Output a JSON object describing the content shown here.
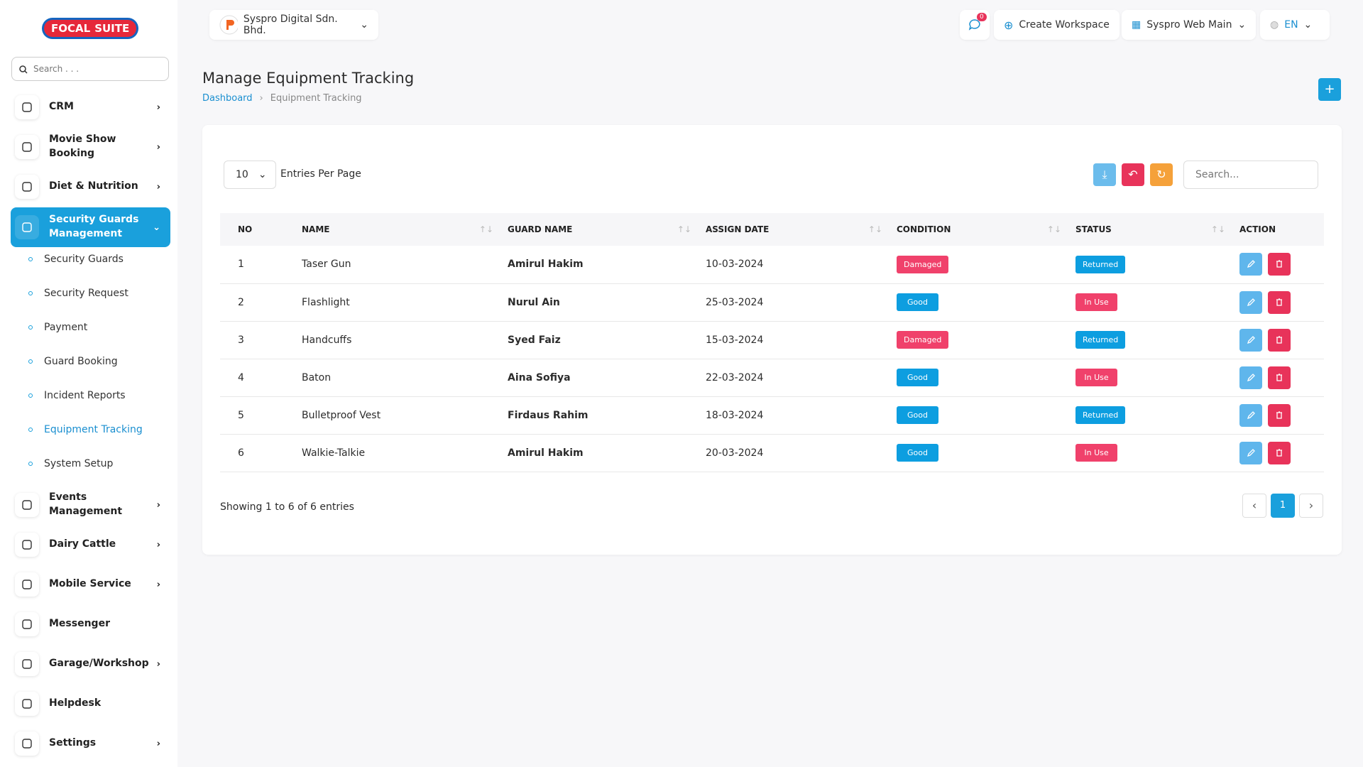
{
  "logo": {
    "part1": "FOCAL",
    "part2": "SUITE"
  },
  "sidebar": {
    "search_placeholder": "Search . . .",
    "menu": [
      {
        "label": "CRM",
        "has_submenu": true
      },
      {
        "label": "Movie Show Booking",
        "has_submenu": true
      },
      {
        "label": "Diet & Nutrition",
        "has_submenu": true
      },
      {
        "label": "Security Guards Management",
        "has_submenu": true,
        "expanded": true,
        "children": [
          {
            "label": "Security Guards"
          },
          {
            "label": "Security Request"
          },
          {
            "label": "Payment"
          },
          {
            "label": "Guard Booking"
          },
          {
            "label": "Incident Reports"
          },
          {
            "label": "Equipment Tracking",
            "active": true
          },
          {
            "label": "System Setup"
          }
        ]
      },
      {
        "label": "Events Management",
        "has_submenu": true
      },
      {
        "label": "Dairy Cattle",
        "has_submenu": true
      },
      {
        "label": "Mobile Service",
        "has_submenu": true
      },
      {
        "label": "Messenger",
        "has_submenu": false
      },
      {
        "label": "Garage/Workshop",
        "has_submenu": true
      },
      {
        "label": "Helpdesk",
        "has_submenu": false
      },
      {
        "label": "Settings",
        "has_submenu": true
      }
    ]
  },
  "header": {
    "company": "Syspro Digital Sdn. Bhd.",
    "notifications": "0",
    "create_workspace": "Create Workspace",
    "workspace": "Syspro Web Main",
    "language": "EN"
  },
  "page": {
    "title": "Manage Equipment Tracking",
    "breadcrumb": [
      "Dashboard",
      "Equipment Tracking"
    ]
  },
  "table_controls": {
    "entries": "10",
    "entries_label": "Entries Per Page",
    "search_placeholder": "Search..."
  },
  "table": {
    "columns": [
      "NO",
      "NAME",
      "GUARD NAME",
      "ASSIGN DATE",
      "CONDITION",
      "STATUS",
      "ACTION"
    ],
    "rows": [
      [
        "1",
        "Taser Gun",
        "Amirul Hakim",
        "10-03-2024",
        "Damaged",
        "Returned"
      ],
      [
        "2",
        "Flashlight",
        "Nurul Ain",
        "25-03-2024",
        "Good",
        "In Use"
      ],
      [
        "3",
        "Handcuffs",
        "Syed Faiz",
        "15-03-2024",
        "Damaged",
        "Returned"
      ],
      [
        "4",
        "Baton",
        "Aina Sofiya",
        "22-03-2024",
        "Good",
        "In Use"
      ],
      [
        "5",
        "Bulletproof Vest",
        "Firdaus Rahim",
        "18-03-2024",
        "Good",
        "Returned"
      ],
      [
        "6",
        "Walkie-Talkie",
        "Amirul Hakim",
        "20-03-2024",
        "Good",
        "In Use"
      ]
    ]
  },
  "footer": {
    "summary": "Showing 1 to 6 of 6 entries",
    "current_page": "1"
  }
}
